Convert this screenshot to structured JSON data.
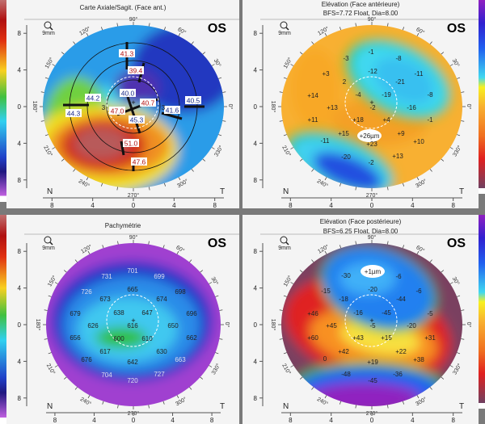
{
  "common": {
    "eye": "OS",
    "zoom_label": "9mm",
    "nasal": "N",
    "temporal": "T",
    "degrees": [
      "90°",
      "120°",
      "150°",
      "180°",
      "210°",
      "240°",
      "270°",
      "300°",
      "330°",
      "0°",
      "30°",
      "60°"
    ],
    "axis_ticks": [
      "8",
      "4",
      "0",
      "4",
      "8"
    ]
  },
  "panels": [
    {
      "id": "axial",
      "title": [
        "Carte Axiale/Sagit. (Face ant.)"
      ],
      "values": [
        "41.3",
        "39.4",
        "40.0",
        "40.7",
        "40.5",
        "41.6",
        "44.2",
        "44.3",
        "47.0",
        "45.3",
        "51.0",
        "47.6",
        "3",
        "3"
      ]
    },
    {
      "id": "elevation-anterior",
      "title": [
        "Elévation (Face antérieure)",
        "BFS=7.72 Float, Dia=8.00"
      ],
      "values": [
        "-1",
        "-3",
        "-8",
        "+3",
        "-12",
        "-11",
        "2",
        "-21",
        "+14",
        "-4",
        "-19",
        "-8",
        "+13",
        "-2",
        "-16",
        "+11",
        "+18",
        "+4",
        "-1",
        "+15",
        "+26µm",
        "+9",
        "-11",
        "+23",
        "+10",
        "-20",
        "-2",
        "+13"
      ]
    },
    {
      "id": "pachymetry",
      "title": [
        "Pachymétrie"
      ],
      "values": [
        "701",
        "731",
        "699",
        "726",
        "665",
        "698",
        "673",
        "674",
        "679",
        "638",
        "647",
        "696",
        "626",
        "616",
        "650",
        "656",
        "600",
        "610",
        "662",
        "617",
        "630",
        "676",
        "642",
        "663",
        "704",
        "720",
        "727"
      ]
    },
    {
      "id": "elevation-posterior",
      "title": [
        "Elévation (Face postérieure)",
        "BFS=6.25 Float, Dia=8.00"
      ],
      "values": [
        "+1µm",
        "-30",
        "-6",
        "-15",
        "-20",
        "-6",
        "-18",
        "-44",
        "+46",
        "-16",
        "-45",
        "-5",
        "+45",
        "-5",
        "-20",
        "+60",
        "+43",
        "+15",
        "+31",
        "+42",
        "+22",
        "0",
        "+19",
        "+38",
        "-48",
        "-45",
        "-36"
      ]
    }
  ],
  "colors": {
    "axial_scale": [
      "#c07070",
      "#b01010",
      "#e03010",
      "#f08020",
      "#f8d020",
      "#c0e020",
      "#40c040",
      "#30d0f0",
      "#2090e8",
      "#2040c8",
      "#201880",
      "#8030c0",
      "#c060e0"
    ],
    "elevation_scale": [
      "#9020c0",
      "#3020d0",
      "#2060f0",
      "#2090f0",
      "#40d8f0",
      "#f8f020",
      "#f8b030",
      "#f07020",
      "#e02020",
      "#a01030",
      "#704060"
    ]
  }
}
